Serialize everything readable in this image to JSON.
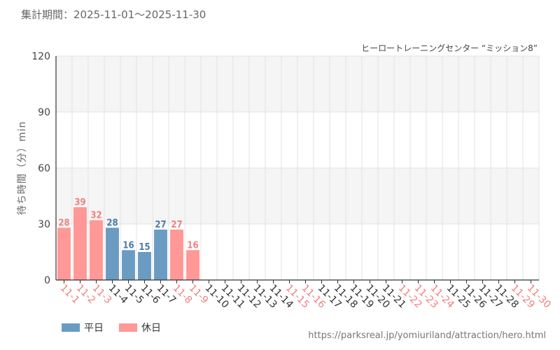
{
  "header": {
    "period_label": "集計期間：2025-11-01～2025-11-30",
    "attraction_title": "ヒーロートレーニングセンター “ミッション8”",
    "source_url": "https://parksreal.jp/yomiuriland/attraction/hero.html"
  },
  "colors": {
    "weekday": "#6a9bc3",
    "holiday": "#ff9896",
    "weekday_label": "#4a7bab",
    "holiday_label": "#f08080",
    "band": "#f5f5f5",
    "grid": "#e3e3e3",
    "axis": "#333333"
  },
  "chart_data": {
    "type": "bar",
    "categories": [
      "11-1",
      "11-2",
      "11-3",
      "11-4",
      "11-5",
      "11-6",
      "11-7",
      "11-8",
      "11-9",
      "11-10",
      "11-11",
      "11-12",
      "11-13",
      "11-14",
      "11-15",
      "11-16",
      "11-17",
      "11-18",
      "11-19",
      "11-20",
      "11-21",
      "11-22",
      "11-23",
      "11-24",
      "11-25",
      "11-26",
      "11-27",
      "11-28",
      "11-29",
      "11-30"
    ],
    "values": [
      28,
      39,
      32,
      28,
      16,
      15,
      27,
      27,
      16,
      null,
      null,
      null,
      null,
      null,
      null,
      null,
      null,
      null,
      null,
      null,
      null,
      null,
      null,
      null,
      null,
      null,
      null,
      null,
      null,
      null
    ],
    "day_type": [
      "holiday",
      "holiday",
      "holiday",
      "weekday",
      "weekday",
      "weekday",
      "weekday",
      "holiday",
      "holiday",
      "weekday",
      "weekday",
      "weekday",
      "weekday",
      "weekday",
      "holiday",
      "holiday",
      "weekday",
      "weekday",
      "weekday",
      "weekday",
      "weekday",
      "holiday",
      "holiday",
      "holiday",
      "weekday",
      "weekday",
      "weekday",
      "weekday",
      "holiday",
      "holiday"
    ],
    "ylabel": "待ち時間（分）min",
    "ylim": [
      0,
      120
    ],
    "yticks": [
      0,
      30,
      60,
      90,
      120
    ],
    "legend": [
      {
        "key": "weekday",
        "label": "平日"
      },
      {
        "key": "holiday",
        "label": "休日"
      }
    ],
    "legend_position": "bottom-left",
    "grid": true
  }
}
